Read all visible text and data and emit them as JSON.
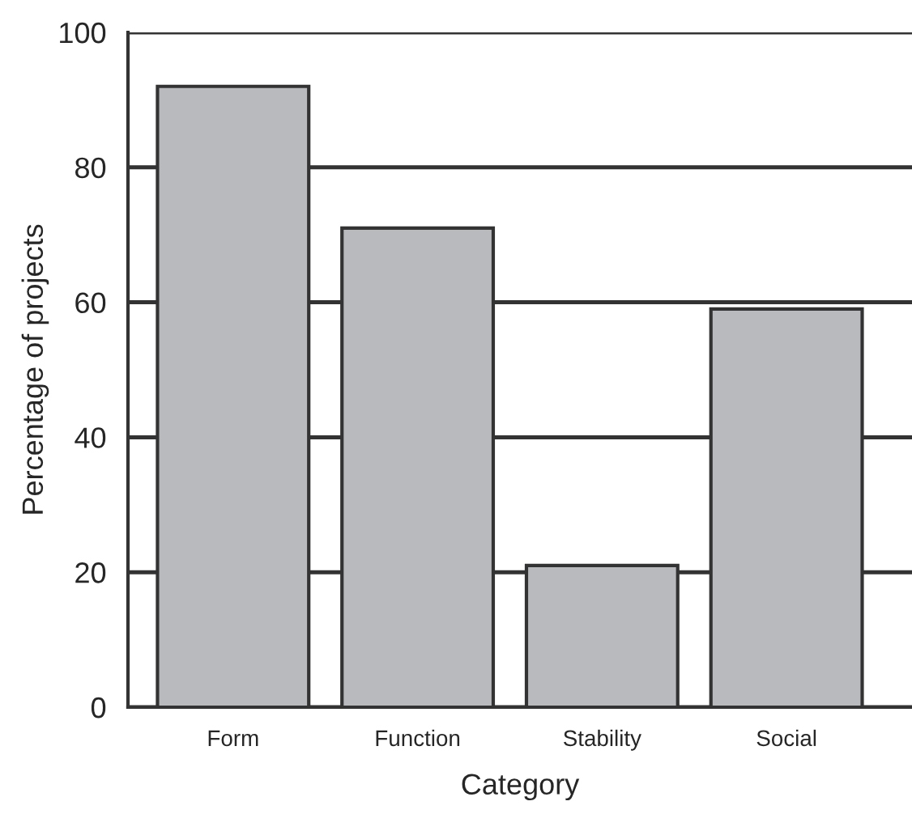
{
  "chart_data": {
    "type": "bar",
    "xlabel": "Category",
    "ylabel": "Percentage of projects",
    "categories": [
      "Form",
      "Function",
      "Stability",
      "Social"
    ],
    "values": [
      92,
      71,
      21,
      59
    ],
    "color": "#b9babe",
    "ylim": [
      0,
      100
    ],
    "yticks": [
      0,
      20,
      40,
      60,
      80,
      100
    ],
    "grid": "y"
  }
}
